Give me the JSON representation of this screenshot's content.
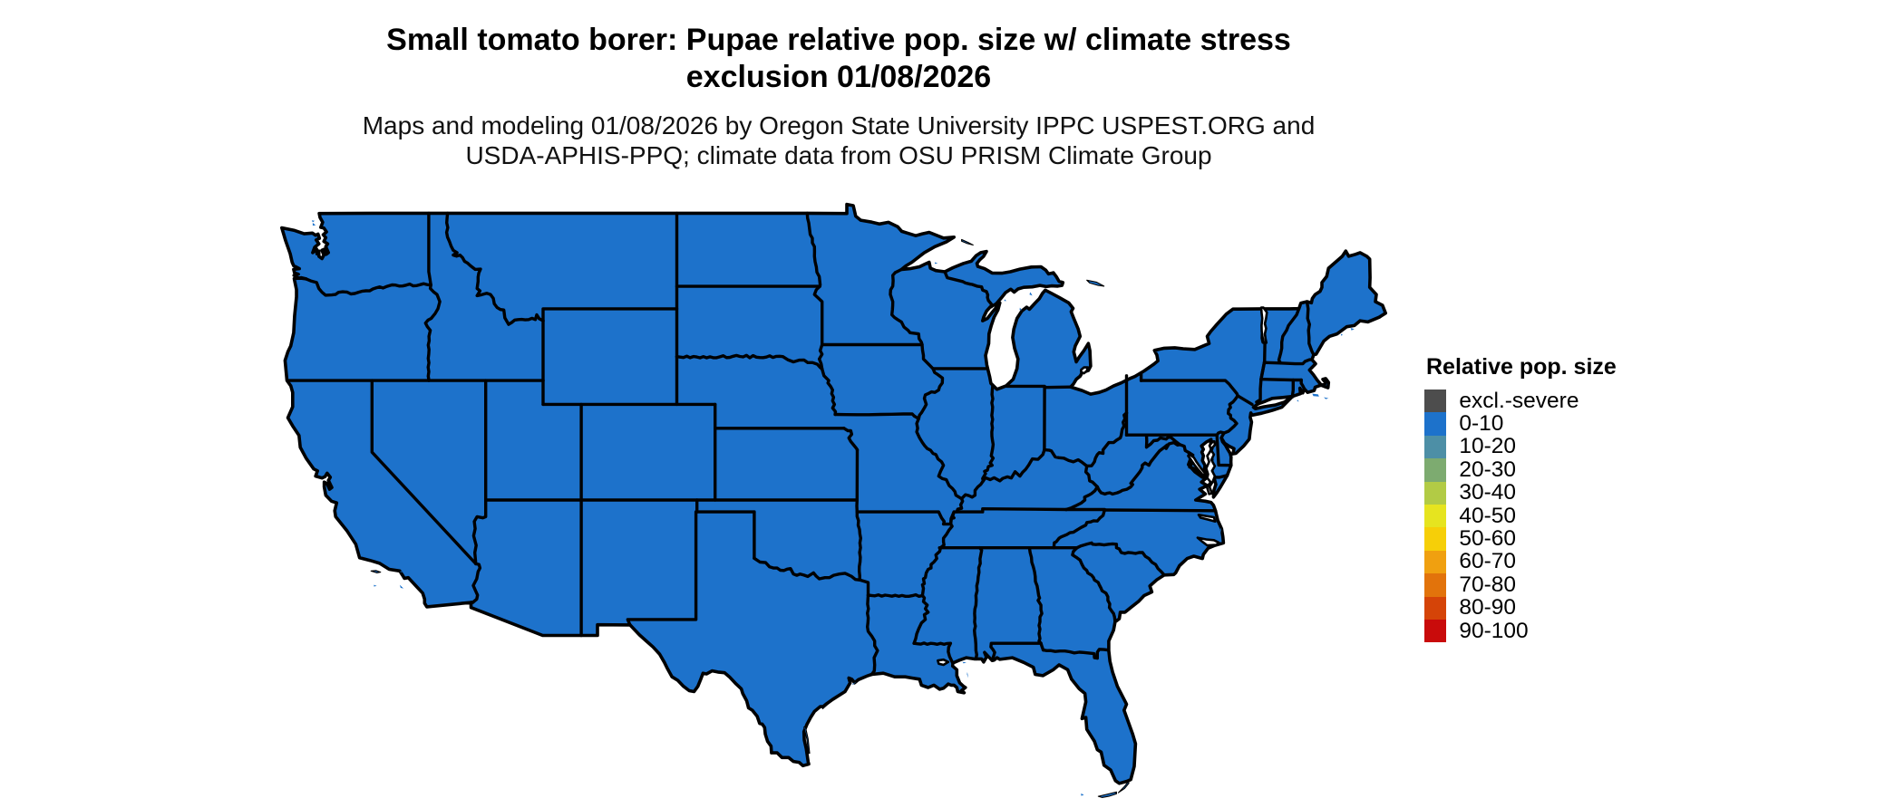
{
  "title": {
    "line1": "Small tomato borer: Pupae relative pop. size w/ climate stress",
    "line2": "exclusion 01/08/2026"
  },
  "subtitle": {
    "line1": "Maps and modeling 01/08/2026 by Oregon State University IPPC USPEST.ORG and",
    "line2": "USDA-APHIS-PPQ; climate data from OSU PRISM Climate Group"
  },
  "legend": {
    "title": "Relative pop. size",
    "items": [
      {
        "label": "excl.-severe",
        "color": "#4d4d4d"
      },
      {
        "label": "0-10",
        "color": "#1d72cb"
      },
      {
        "label": "10-20",
        "color": "#4d8fa6"
      },
      {
        "label": "20-30",
        "color": "#7dab70"
      },
      {
        "label": "30-40",
        "color": "#b2cb45"
      },
      {
        "label": "40-50",
        "color": "#e6e41f"
      },
      {
        "label": "50-60",
        "color": "#f6cf08"
      },
      {
        "label": "60-70",
        "color": "#f0a010"
      },
      {
        "label": "70-80",
        "color": "#e2730b"
      },
      {
        "label": "80-90",
        "color": "#d54408"
      },
      {
        "label": "90-100",
        "color": "#c90b0b"
      }
    ]
  },
  "map": {
    "fill_color": "#1d72cb",
    "border_color": "#000000",
    "background": "#ffffff",
    "region": "Contiguous United States",
    "value_category": "0-10"
  },
  "chart_data": {
    "type": "choropleth-map",
    "title": "Small tomato borer: Pupae relative pop. size w/ climate stress exclusion 01/08/2026",
    "legend_title": "Relative pop. size",
    "classes": [
      "excl.-severe",
      "0-10",
      "10-20",
      "20-30",
      "30-40",
      "40-50",
      "50-60",
      "60-70",
      "70-80",
      "80-90",
      "90-100"
    ],
    "class_colors": [
      "#4d4d4d",
      "#1d72cb",
      "#4d8fa6",
      "#7dab70",
      "#b2cb45",
      "#e6e41f",
      "#f6cf08",
      "#f0a010",
      "#e2730b",
      "#d54408",
      "#c90b0b"
    ],
    "values": {
      "all_contiguous_us_states": "0-10"
    }
  }
}
